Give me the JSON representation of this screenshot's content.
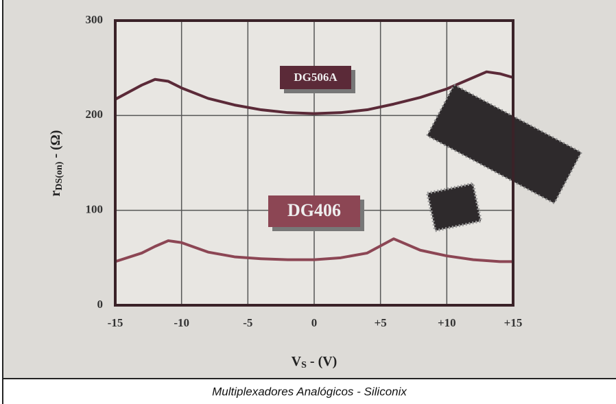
{
  "chart_data": {
    "type": "line",
    "x_label": {
      "main": "V",
      "sub": "S",
      "rest": " - (V)"
    },
    "y_label": {
      "main": "r",
      "sub": "DS(on)",
      "rest": " - (Ω)"
    },
    "caption": "Multiplexadores Analógicos - Siliconix",
    "x": [
      -15,
      -13,
      -12,
      -11,
      -10,
      -8,
      -6,
      -4,
      -2,
      0,
      2,
      4,
      6,
      8,
      10,
      12,
      13,
      14,
      15
    ],
    "series": [
      {
        "name": "DG506A",
        "color": "#5b2a38",
        "values": [
          217,
          232,
          238,
          236,
          229,
          218,
          211,
          206,
          203,
          202,
          203,
          206,
          212,
          219,
          228,
          240,
          246,
          244,
          240
        ]
      },
      {
        "name": "DG406",
        "color": "#8c4654",
        "values": [
          46,
          55,
          62,
          68,
          66,
          56,
          51,
          49,
          48,
          48,
          50,
          55,
          70,
          58,
          52,
          48,
          47,
          46,
          46
        ]
      }
    ],
    "xlim": [
      -15,
      15
    ],
    "ylim": [
      0,
      300
    ],
    "xticks": [
      -15,
      -10,
      -5,
      0,
      {
        "value": 5,
        "label": "+5"
      },
      {
        "value": 10,
        "label": "+10"
      },
      {
        "value": 15,
        "label": "+15"
      }
    ],
    "yticks": [
      0,
      100,
      200,
      300
    ],
    "grid": true
  }
}
